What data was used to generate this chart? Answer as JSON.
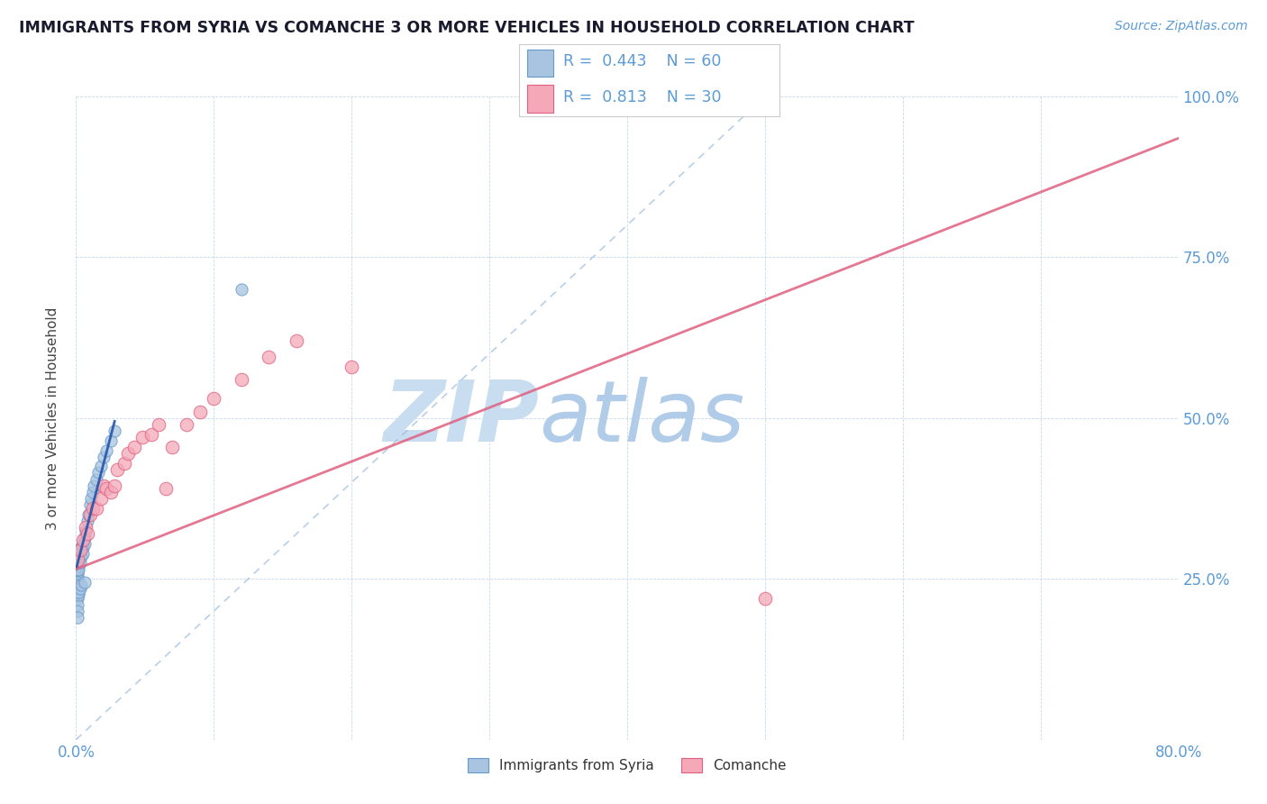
{
  "title": "IMMIGRANTS FROM SYRIA VS COMANCHE 3 OR MORE VEHICLES IN HOUSEHOLD CORRELATION CHART",
  "source": "Source: ZipAtlas.com",
  "ylabel": "3 or more Vehicles in Household",
  "xlim": [
    0.0,
    0.8
  ],
  "ylim": [
    0.0,
    1.0
  ],
  "xticks": [
    0.0,
    0.1,
    0.2,
    0.3,
    0.4,
    0.5,
    0.6,
    0.7,
    0.8
  ],
  "yticks": [
    0.0,
    0.25,
    0.5,
    0.75,
    1.0
  ],
  "blue_R": 0.443,
  "blue_N": 60,
  "pink_R": 0.813,
  "pink_N": 30,
  "blue_color": "#a8c4e0",
  "blue_edge": "#6699cc",
  "pink_color": "#f4a8b8",
  "pink_edge": "#e06080",
  "blue_label": "Immigrants from Syria",
  "pink_label": "Comanche",
  "axis_color": "#5b9bd5",
  "watermark": "ZIPatlas",
  "watermark_color": "#ddeeff",
  "blue_line_color": "#2255aa",
  "pink_line_color": "#e06080",
  "diag_color": "#99bbdd",
  "blue_scatter_x": [
    0.0005,
    0.0005,
    0.0005,
    0.0005,
    0.0008,
    0.0008,
    0.001,
    0.001,
    0.001,
    0.001,
    0.001,
    0.001,
    0.001,
    0.001,
    0.001,
    0.0012,
    0.0012,
    0.0015,
    0.0015,
    0.002,
    0.002,
    0.002,
    0.002,
    0.002,
    0.003,
    0.003,
    0.003,
    0.003,
    0.004,
    0.004,
    0.004,
    0.005,
    0.005,
    0.005,
    0.006,
    0.006,
    0.007,
    0.008,
    0.009,
    0.01,
    0.011,
    0.012,
    0.013,
    0.015,
    0.016,
    0.018,
    0.02,
    0.022,
    0.025,
    0.028,
    0.001,
    0.001,
    0.001,
    0.001,
    0.0015,
    0.002,
    0.003,
    0.004,
    0.006,
    0.12
  ],
  "blue_scatter_y": [
    0.27,
    0.26,
    0.255,
    0.25,
    0.265,
    0.245,
    0.28,
    0.275,
    0.27,
    0.265,
    0.26,
    0.255,
    0.25,
    0.245,
    0.24,
    0.275,
    0.265,
    0.28,
    0.27,
    0.29,
    0.285,
    0.28,
    0.275,
    0.265,
    0.295,
    0.29,
    0.285,
    0.275,
    0.3,
    0.295,
    0.285,
    0.305,
    0.3,
    0.29,
    0.315,
    0.305,
    0.325,
    0.34,
    0.35,
    0.365,
    0.375,
    0.385,
    0.395,
    0.405,
    0.415,
    0.425,
    0.44,
    0.45,
    0.465,
    0.48,
    0.22,
    0.21,
    0.2,
    0.19,
    0.225,
    0.23,
    0.235,
    0.24,
    0.245,
    0.7
  ],
  "pink_scatter_x": [
    0.001,
    0.003,
    0.005,
    0.007,
    0.008,
    0.01,
    0.012,
    0.015,
    0.018,
    0.02,
    0.022,
    0.025,
    0.028,
    0.03,
    0.035,
    0.038,
    0.042,
    0.048,
    0.055,
    0.06,
    0.065,
    0.07,
    0.08,
    0.09,
    0.1,
    0.12,
    0.14,
    0.16,
    0.2,
    0.5
  ],
  "pink_scatter_y": [
    0.28,
    0.295,
    0.31,
    0.33,
    0.32,
    0.35,
    0.36,
    0.36,
    0.375,
    0.395,
    0.39,
    0.385,
    0.395,
    0.42,
    0.43,
    0.445,
    0.455,
    0.47,
    0.475,
    0.49,
    0.39,
    0.455,
    0.49,
    0.51,
    0.53,
    0.56,
    0.595,
    0.62,
    0.58,
    0.22
  ],
  "blue_line_x": [
    0.0,
    0.028
  ],
  "blue_line_y": [
    0.265,
    0.495
  ],
  "pink_line_x": [
    0.0,
    0.8
  ],
  "pink_line_y": [
    0.265,
    0.935
  ],
  "diag_line_x": [
    0.0,
    0.5
  ],
  "diag_line_y": [
    0.0,
    1.0
  ]
}
